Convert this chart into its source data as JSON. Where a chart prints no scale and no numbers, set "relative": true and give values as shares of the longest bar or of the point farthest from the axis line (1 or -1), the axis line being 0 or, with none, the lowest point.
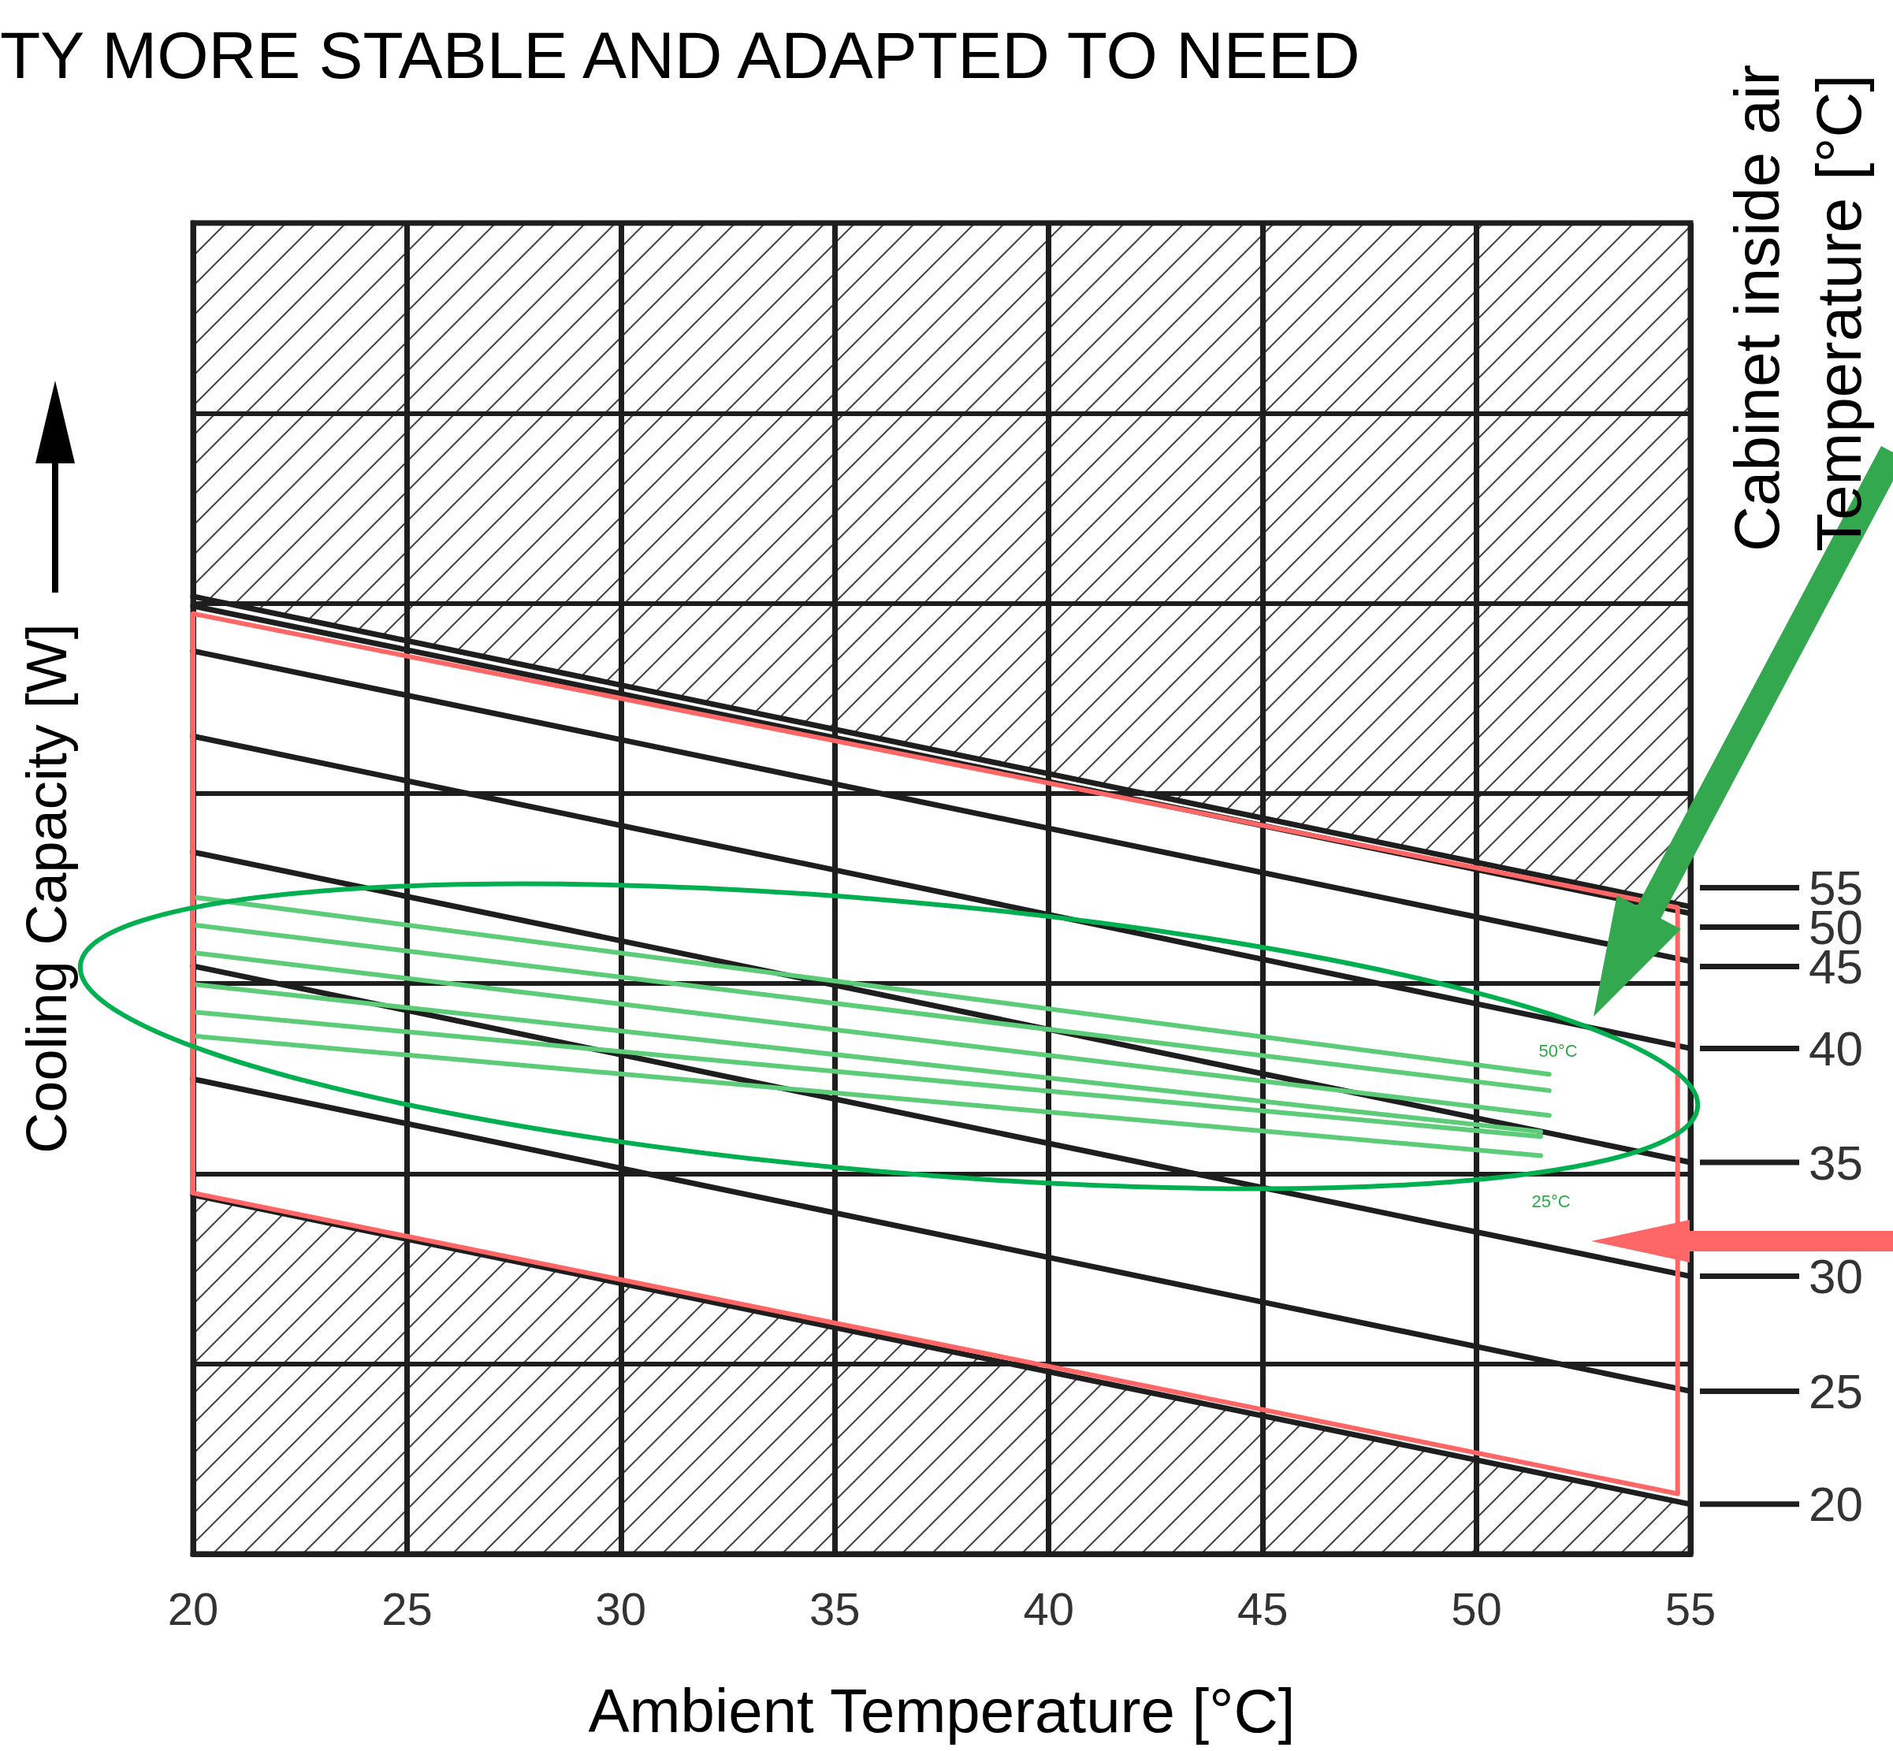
{
  "chart_data": {
    "type": "line",
    "title": "TY MORE STABLE AND ADAPTED TO NEED",
    "xlabel": "Ambient Temperature [°C]",
    "ylabel": "Cooling Capacity [W]",
    "legend_title": "Cabinet inside air Temperature [°C]",
    "relative": true,
    "x": [
      20,
      55
    ],
    "xlim": [
      20,
      55
    ],
    "xticks": [
      20,
      25,
      30,
      35,
      40,
      45,
      50,
      55
    ],
    "grid": true,
    "marker": "none",
    "line_style": "solid",
    "series": [
      {
        "name": "55",
        "color": "#1e1e1e",
        "values": [
          1.0,
          0.676
        ]
      },
      {
        "name": "50",
        "color": "#1e1e1e",
        "values": [
          0.99,
          0.669
        ]
      },
      {
        "name": "45",
        "color": "#1e1e1e",
        "values": [
          0.943,
          0.619
        ]
      },
      {
        "name": "40",
        "color": "#1e1e1e",
        "values": [
          0.854,
          0.528
        ]
      },
      {
        "name": "35",
        "color": "#1e1e1e",
        "values": [
          0.733,
          0.409
        ]
      },
      {
        "name": "30",
        "color": "#1e1e1e",
        "values": [
          0.614,
          0.29
        ]
      },
      {
        "name": "25",
        "color": "#1e1e1e",
        "values": [
          0.496,
          0.17
        ]
      },
      {
        "name": "20",
        "color": "#1e1e1e",
        "values": [
          0.375,
          0.052
        ]
      },
      {
        "color": "#5ccc78",
        "x": [
          20,
          51.7
        ],
        "values": [
          0.686,
          0.501
        ]
      },
      {
        "color": "#5ccc78",
        "x": [
          20,
          51.7
        ],
        "values": [
          0.657,
          0.484
        ]
      },
      {
        "color": "#5ccc78",
        "x": [
          20,
          51.7
        ],
        "values": [
          0.628,
          0.458
        ]
      },
      {
        "color": "#5ccc78",
        "x": [
          20,
          51.5
        ],
        "values": [
          0.595,
          0.441
        ]
      },
      {
        "color": "#5ccc78",
        "x": [
          20,
          51.5
        ],
        "values": [
          0.566,
          0.436
        ]
      },
      {
        "color": "#5ccc78",
        "x": [
          20,
          51.5
        ],
        "values": [
          0.541,
          0.416
        ]
      },
      {
        "color": "#ff6666",
        "x": [
          20,
          20,
          54.7,
          54.7
        ],
        "values": [
          0.377,
          0.982,
          0.675,
          0.063
        ]
      },
      {
        "color": "#ff6666",
        "x": [
          20,
          54.7
        ],
        "values": [
          0.377,
          0.063
        ]
      }
    ],
    "legend": "right",
    "annotations": [
      "50°C",
      "25°C"
    ]
  }
}
